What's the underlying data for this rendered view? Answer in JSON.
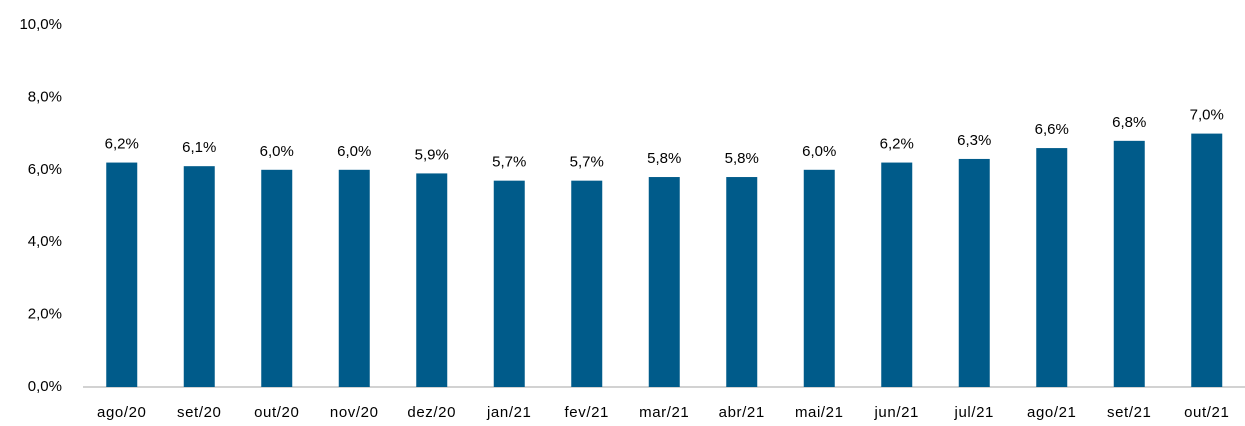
{
  "chart_data": {
    "type": "bar",
    "categories": [
      "ago/20",
      "set/20",
      "out/20",
      "nov/20",
      "dez/20",
      "jan/21",
      "fev/21",
      "mar/21",
      "abr/21",
      "mai/21",
      "jun/21",
      "jul/21",
      "ago/21",
      "set/21",
      "out/21"
    ],
    "values": [
      6.2,
      6.1,
      6.0,
      6.0,
      5.9,
      5.7,
      5.7,
      5.8,
      5.8,
      6.0,
      6.2,
      6.3,
      6.6,
      6.8,
      7.0
    ],
    "value_labels": [
      "6,2%",
      "6,1%",
      "6,0%",
      "6,0%",
      "5,9%",
      "5,7%",
      "5,7%",
      "5,8%",
      "5,8%",
      "6,0%",
      "6,2%",
      "6,3%",
      "6,6%",
      "6,8%",
      "7,0%"
    ],
    "color": "#005b8a",
    "ylim": [
      0,
      10
    ],
    "yticks": [
      {
        "value": 0,
        "label": "0,0%"
      },
      {
        "value": 2,
        "label": "2,0%"
      },
      {
        "value": 4,
        "label": "4,0%"
      },
      {
        "value": 6,
        "label": "6,0%"
      },
      {
        "value": 8,
        "label": "8,0%"
      },
      {
        "value": 10,
        "label": "10,0%"
      }
    ],
    "grid": false
  }
}
